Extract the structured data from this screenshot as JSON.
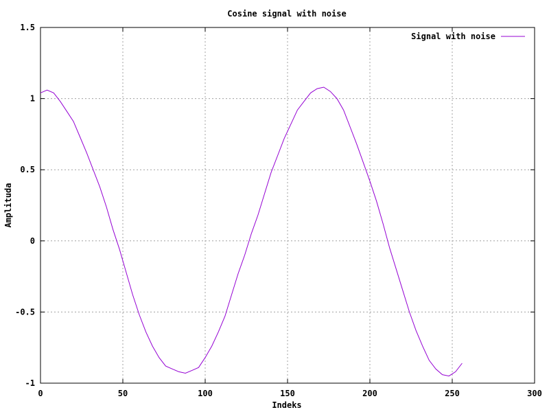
{
  "chart_data": {
    "type": "line",
    "title": "Cosine signal with noise",
    "xlabel": "Indeks",
    "ylabel": "Amplituda",
    "xlim": [
      0,
      300
    ],
    "ylim": [
      -1,
      1.5
    ],
    "xticks": [
      0,
      50,
      100,
      150,
      200,
      250,
      300
    ],
    "yticks": [
      -1,
      -0.5,
      0,
      0.5,
      1,
      1.5
    ],
    "xtick_labels": [
      "0",
      "50",
      "100",
      "150",
      "200",
      "250",
      "300"
    ],
    "ytick_labels": [
      "-1",
      "-0.5",
      "0",
      "0.5",
      "1",
      "1.5"
    ],
    "grid": true,
    "legend_position": "top-right",
    "series": [
      {
        "name": "Signal with noise",
        "color": "#9400d3",
        "x": [
          0,
          4,
          8,
          12,
          16,
          20,
          24,
          28,
          32,
          36,
          40,
          44,
          48,
          52,
          56,
          60,
          64,
          68,
          72,
          76,
          80,
          84,
          88,
          92,
          96,
          100,
          104,
          108,
          112,
          116,
          120,
          124,
          128,
          132,
          136,
          140,
          144,
          148,
          152,
          156,
          160,
          164,
          168,
          172,
          176,
          180,
          184,
          188,
          192,
          196,
          200,
          204,
          208,
          212,
          216,
          220,
          224,
          228,
          232,
          236,
          240,
          244,
          248,
          252,
          256
        ],
        "y": [
          1.04,
          1.06,
          1.04,
          0.98,
          0.91,
          0.84,
          0.73,
          0.62,
          0.5,
          0.38,
          0.24,
          0.08,
          -0.06,
          -0.22,
          -0.38,
          -0.52,
          -0.64,
          -0.74,
          -0.82,
          -0.88,
          -0.9,
          -0.92,
          -0.93,
          -0.91,
          -0.89,
          -0.82,
          -0.74,
          -0.64,
          -0.53,
          -0.38,
          -0.23,
          -0.1,
          0.05,
          0.18,
          0.33,
          0.48,
          0.6,
          0.72,
          0.82,
          0.92,
          0.98,
          1.04,
          1.07,
          1.08,
          1.05,
          1.0,
          0.92,
          0.8,
          0.68,
          0.55,
          0.42,
          0.28,
          0.12,
          -0.05,
          -0.2,
          -0.35,
          -0.5,
          -0.63,
          -0.74,
          -0.84,
          -0.9,
          -0.94,
          -0.95,
          -0.92,
          -0.86
        ],
        "note_unused": ""
      }
    ]
  }
}
